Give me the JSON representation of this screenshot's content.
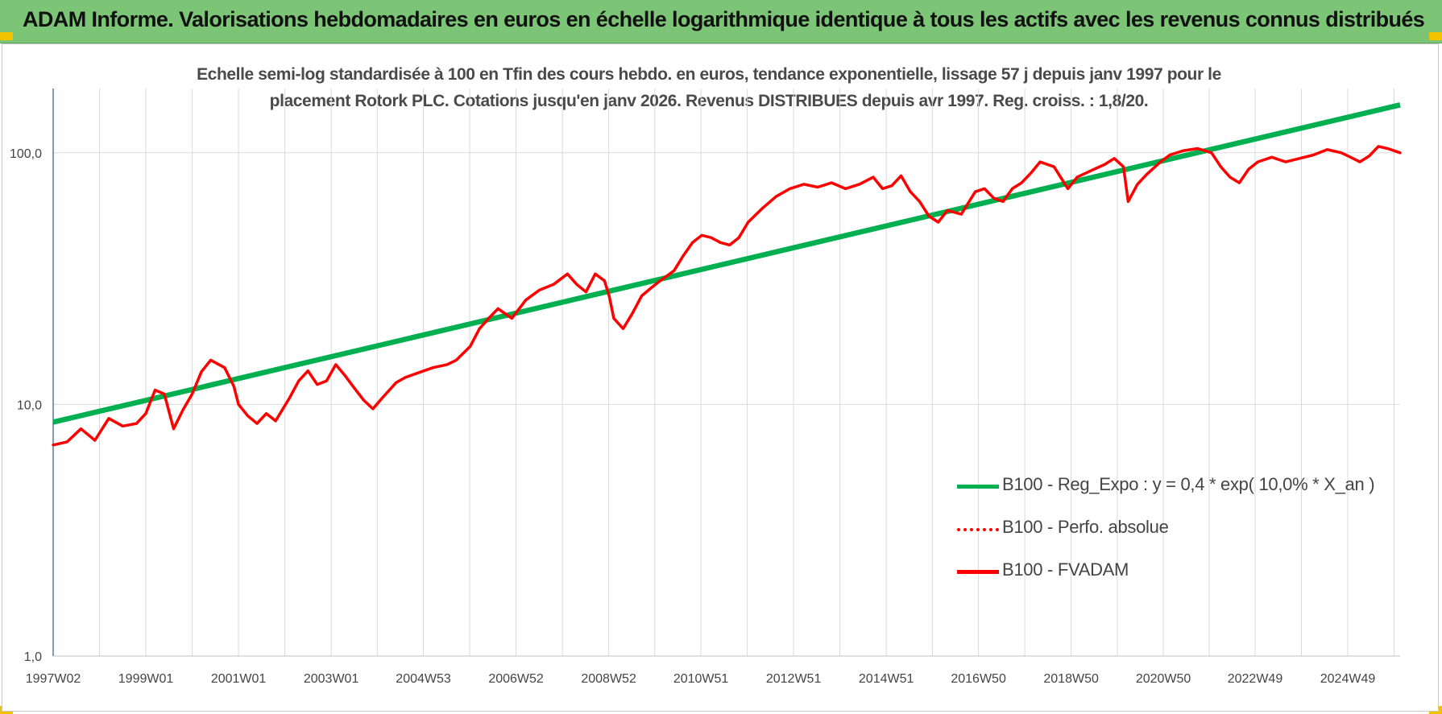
{
  "banner": {
    "title": "ADAM Informe. Valorisations hebdomadaires en euros en échelle logarithmique identique à tous les actifs avec les revenus connus distribués"
  },
  "colors": {
    "banner_bg": "#7cc576",
    "trend": "#00b050",
    "series": "#ff0000",
    "corner": "#f2c200",
    "grid": "#d9d9d9",
    "axis": "#2f5597"
  },
  "chart_data": {
    "type": "line",
    "title_line1": "Echelle semi-log standardisée à 100 en Tfin des cours hebdo. en euros, tendance exponentielle, lissage 57 j depuis janv 1997 pour le",
    "title_line2": "placement Rotork PLC. Cotations jusqu'en janv 2026.  Revenus DISTRIBUES depuis avr 1997. Reg. croiss. : 1,8/20.",
    "yscale": "log",
    "ylim": [
      1,
      180
    ],
    "xlim": [
      1997.0,
      2026.07
    ],
    "y_ticks": [
      1,
      10,
      100
    ],
    "y_tick_labels": [
      "1,0",
      "10,0",
      "100,0"
    ],
    "x_ticks": [
      1997.0,
      1999.0,
      2001.0,
      2003.0,
      2004.99,
      2006.99,
      2008.99,
      2010.98,
      2012.98,
      2014.98,
      2016.97,
      2018.97,
      2020.96,
      2022.94,
      2024.94
    ],
    "x_tick_labels": [
      "1997W02",
      "1999W01",
      "2001W01",
      "2003W01",
      "2004W53",
      "2006W52",
      "2008W52",
      "2010W51",
      "2012W51",
      "2014W51",
      "2016W50",
      "2018W50",
      "2020W50",
      "2022W49",
      "2024W49"
    ],
    "grid": true,
    "legend_position": "bottom-right",
    "series": [
      {
        "name": "B100 - Reg_Expo : y = 0,4 * exp( 10,0% *  X_an )",
        "style": "solid-thick",
        "color": "#00b050",
        "points": [
          [
            1997.0,
            8.5
          ],
          [
            2026.07,
            155
          ]
        ]
      },
      {
        "name": "B100 - Perfo. absolue",
        "style": "dotted",
        "color": "#ff0000",
        "points": []
      },
      {
        "name": "B100 - FVADAM",
        "style": "solid",
        "color": "#ff0000",
        "points": [
          [
            1997.0,
            6.9
          ],
          [
            1997.3,
            7.1
          ],
          [
            1997.6,
            8.0
          ],
          [
            1997.9,
            7.2
          ],
          [
            1998.2,
            8.8
          ],
          [
            1998.5,
            8.2
          ],
          [
            1998.8,
            8.4
          ],
          [
            1999.0,
            9.2
          ],
          [
            1999.2,
            11.4
          ],
          [
            1999.4,
            11.0
          ],
          [
            1999.6,
            8.0
          ],
          [
            1999.8,
            9.5
          ],
          [
            2000.0,
            11.0
          ],
          [
            2000.2,
            13.5
          ],
          [
            2000.4,
            15.0
          ],
          [
            2000.7,
            14.0
          ],
          [
            2000.9,
            11.8
          ],
          [
            2001.0,
            10.0
          ],
          [
            2001.2,
            9.0
          ],
          [
            2001.4,
            8.4
          ],
          [
            2001.6,
            9.2
          ],
          [
            2001.8,
            8.6
          ],
          [
            2002.1,
            10.6
          ],
          [
            2002.3,
            12.4
          ],
          [
            2002.5,
            13.6
          ],
          [
            2002.7,
            12.0
          ],
          [
            2002.9,
            12.4
          ],
          [
            2003.1,
            14.4
          ],
          [
            2003.3,
            13.0
          ],
          [
            2003.5,
            11.6
          ],
          [
            2003.7,
            10.4
          ],
          [
            2003.9,
            9.6
          ],
          [
            2004.1,
            10.6
          ],
          [
            2004.4,
            12.2
          ],
          [
            2004.6,
            12.8
          ],
          [
            2004.9,
            13.4
          ],
          [
            2005.2,
            14.0
          ],
          [
            2005.5,
            14.4
          ],
          [
            2005.7,
            15.0
          ],
          [
            2006.0,
            17.0
          ],
          [
            2006.2,
            20.0
          ],
          [
            2006.4,
            22.0
          ],
          [
            2006.6,
            24.0
          ],
          [
            2006.9,
            22.0
          ],
          [
            2007.2,
            26.0
          ],
          [
            2007.5,
            28.5
          ],
          [
            2007.8,
            30.0
          ],
          [
            2008.1,
            33.0
          ],
          [
            2008.3,
            30.0
          ],
          [
            2008.5,
            28.0
          ],
          [
            2008.7,
            33.0
          ],
          [
            2008.9,
            31.0
          ],
          [
            2009.0,
            27.0
          ],
          [
            2009.1,
            22.0
          ],
          [
            2009.3,
            20.0
          ],
          [
            2009.5,
            23.0
          ],
          [
            2009.7,
            27.0
          ],
          [
            2009.9,
            29.0
          ],
          [
            2010.1,
            31.0
          ],
          [
            2010.4,
            34.0
          ],
          [
            2010.6,
            39.0
          ],
          [
            2010.8,
            44.0
          ],
          [
            2011.0,
            47.0
          ],
          [
            2011.2,
            46.0
          ],
          [
            2011.4,
            44.0
          ],
          [
            2011.6,
            43.0
          ],
          [
            2011.8,
            46.0
          ],
          [
            2012.0,
            53.0
          ],
          [
            2012.3,
            60.0
          ],
          [
            2012.6,
            67.0
          ],
          [
            2012.9,
            72.0
          ],
          [
            2013.2,
            75.0
          ],
          [
            2013.5,
            73.0
          ],
          [
            2013.8,
            76.0
          ],
          [
            2014.1,
            72.0
          ],
          [
            2014.4,
            75.0
          ],
          [
            2014.7,
            80.0
          ],
          [
            2014.9,
            72.0
          ],
          [
            2015.1,
            74.0
          ],
          [
            2015.3,
            81.0
          ],
          [
            2015.5,
            70.0
          ],
          [
            2015.7,
            64.0
          ],
          [
            2015.9,
            56.0
          ],
          [
            2016.1,
            53.0
          ],
          [
            2016.3,
            59.0
          ],
          [
            2016.6,
            57.0
          ],
          [
            2016.9,
            70.0
          ],
          [
            2017.1,
            72.0
          ],
          [
            2017.3,
            66.0
          ],
          [
            2017.5,
            64.0
          ],
          [
            2017.7,
            72.0
          ],
          [
            2017.9,
            76.0
          ],
          [
            2018.1,
            83.0
          ],
          [
            2018.3,
            92.0
          ],
          [
            2018.6,
            88.0
          ],
          [
            2018.9,
            72.0
          ],
          [
            2019.1,
            80.0
          ],
          [
            2019.4,
            85.0
          ],
          [
            2019.7,
            90.0
          ],
          [
            2019.9,
            95.0
          ],
          [
            2020.1,
            88.0
          ],
          [
            2020.2,
            64.0
          ],
          [
            2020.4,
            75.0
          ],
          [
            2020.6,
            82.0
          ],
          [
            2020.9,
            92.0
          ],
          [
            2021.1,
            98.0
          ],
          [
            2021.4,
            102.0
          ],
          [
            2021.7,
            104.0
          ],
          [
            2022.0,
            100.0
          ],
          [
            2022.2,
            88.0
          ],
          [
            2022.4,
            80.0
          ],
          [
            2022.6,
            76.0
          ],
          [
            2022.8,
            86.0
          ],
          [
            2023.0,
            92.0
          ],
          [
            2023.3,
            96.0
          ],
          [
            2023.6,
            92.0
          ],
          [
            2023.9,
            95.0
          ],
          [
            2024.2,
            98.0
          ],
          [
            2024.5,
            103.0
          ],
          [
            2024.8,
            100.0
          ],
          [
            2025.0,
            96.0
          ],
          [
            2025.2,
            92.0
          ],
          [
            2025.4,
            97.0
          ],
          [
            2025.6,
            106.0
          ],
          [
            2025.8,
            104.0
          ],
          [
            2026.07,
            100.0
          ]
        ]
      }
    ]
  }
}
